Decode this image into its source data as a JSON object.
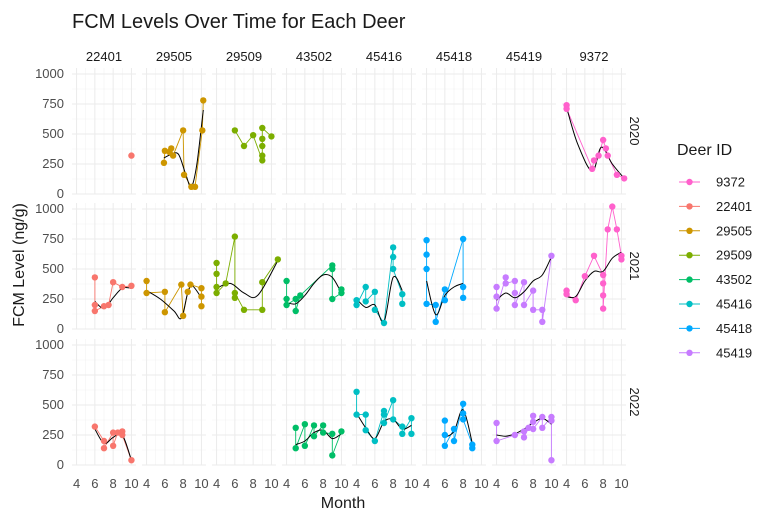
{
  "chart_data": {
    "type": "scatter",
    "title": "FCM Levels Over Time for Each Deer",
    "xlabel": "Month",
    "ylabel": "FCM Level (ng/g)",
    "xlim": [
      3.5,
      10.5
    ],
    "ylim": [
      0,
      1050
    ],
    "x_ticks": [
      4,
      6,
      8,
      10
    ],
    "y_ticks": [
      0,
      250,
      500,
      750,
      1000
    ],
    "grid": true,
    "legend_title": "Deer ID",
    "legend_position": "right",
    "facet_columns": [
      "22401",
      "29505",
      "29509",
      "43502",
      "45416",
      "45418",
      "45419",
      "9372"
    ],
    "facet_rows": [
      "2020",
      "2021",
      "2022"
    ],
    "series_colors": {
      "22401": "#F8766D",
      "29505": "#CD9600",
      "29509": "#7CAE00",
      "43502": "#00BE67",
      "45416": "#00BFC4",
      "45418": "#00A9FF",
      "45419": "#C77CFF",
      "9372": "#FF61CC"
    },
    "trend_color": "#000000",
    "panels": [
      {
        "id": "22401",
        "year": "2020",
        "points": [
          [
            10.0,
            320
          ]
        ],
        "trend": []
      },
      {
        "id": "29505",
        "year": "2020",
        "points": [
          [
            5.9,
            260
          ],
          [
            6.0,
            360
          ],
          [
            6.5,
            350
          ],
          [
            6.7,
            380
          ],
          [
            6.9,
            320
          ],
          [
            8.0,
            530
          ],
          [
            8.1,
            160
          ],
          [
            8.9,
            60
          ],
          [
            9.3,
            60
          ],
          [
            10.1,
            530
          ],
          [
            10.2,
            780
          ]
        ],
        "trend": [
          [
            5.9,
            300
          ],
          [
            6.7,
            330
          ],
          [
            7.5,
            330
          ],
          [
            8.3,
            160
          ],
          [
            8.9,
            60
          ],
          [
            9.5,
            250
          ],
          [
            10.2,
            700
          ]
        ]
      },
      {
        "id": "29509",
        "year": "2020",
        "points": [
          [
            6.0,
            530
          ],
          [
            7.0,
            400
          ],
          [
            8.0,
            490
          ],
          [
            9.0,
            280
          ],
          [
            9.0,
            320
          ],
          [
            9.0,
            400
          ],
          [
            9.0,
            460
          ],
          [
            9.0,
            550
          ],
          [
            10.0,
            480
          ]
        ],
        "trend": []
      },
      {
        "id": "9372",
        "year": "2020",
        "points": [
          [
            4.0,
            740
          ],
          [
            4.0,
            710
          ],
          [
            6.8,
            210
          ],
          [
            7.0,
            280
          ],
          [
            7.5,
            320
          ],
          [
            8.0,
            450
          ],
          [
            8.3,
            380
          ],
          [
            8.5,
            320
          ],
          [
            9.5,
            160
          ],
          [
            10.3,
            130
          ]
        ],
        "trend": [
          [
            4.0,
            720
          ],
          [
            5.2,
            420
          ],
          [
            6.8,
            190
          ],
          [
            7.8,
            390
          ],
          [
            9.0,
            250
          ],
          [
            10.3,
            130
          ]
        ]
      },
      {
        "id": "22401",
        "year": "2021",
        "points": [
          [
            6.0,
            430
          ],
          [
            6.0,
            200
          ],
          [
            6.0,
            150
          ],
          [
            7.0,
            190
          ],
          [
            7.5,
            200
          ],
          [
            8.0,
            390
          ],
          [
            9.0,
            350
          ],
          [
            10.0,
            360
          ]
        ],
        "trend": [
          [
            6.0,
            230
          ],
          [
            7.0,
            170
          ],
          [
            8.0,
            260
          ],
          [
            9.0,
            340
          ],
          [
            10.0,
            340
          ]
        ]
      },
      {
        "id": "29505",
        "year": "2021",
        "points": [
          [
            4.0,
            400
          ],
          [
            4.0,
            300
          ],
          [
            6.0,
            310
          ],
          [
            6.0,
            140
          ],
          [
            7.8,
            370
          ],
          [
            8.0,
            110
          ],
          [
            8.5,
            310
          ],
          [
            8.8,
            370
          ],
          [
            10.0,
            340
          ],
          [
            10.0,
            270
          ],
          [
            10.0,
            190
          ]
        ],
        "trend": [
          [
            4.0,
            320
          ],
          [
            5.5,
            250
          ],
          [
            7.0,
            150
          ],
          [
            7.8,
            90
          ],
          [
            8.5,
            300
          ],
          [
            9.0,
            360
          ],
          [
            10.0,
            260
          ]
        ]
      },
      {
        "id": "29509",
        "year": "2021",
        "points": [
          [
            4.0,
            550
          ],
          [
            4.0,
            460
          ],
          [
            4.0,
            350
          ],
          [
            4.0,
            300
          ],
          [
            5.0,
            380
          ],
          [
            6.0,
            770
          ],
          [
            6.0,
            260
          ],
          [
            6.0,
            300
          ],
          [
            7.0,
            160
          ],
          [
            9.0,
            160
          ],
          [
            9.0,
            390
          ],
          [
            10.7,
            580
          ]
        ],
        "trend": [
          [
            4.0,
            340
          ],
          [
            5.5,
            380
          ],
          [
            7.0,
            300
          ],
          [
            8.5,
            280
          ],
          [
            10.7,
            570
          ]
        ]
      },
      {
        "id": "43502",
        "year": "2021",
        "points": [
          [
            4.0,
            400
          ],
          [
            4.0,
            250
          ],
          [
            4.0,
            200
          ],
          [
            5.0,
            250
          ],
          [
            5.0,
            150
          ],
          [
            5.5,
            280
          ],
          [
            9.0,
            530
          ],
          [
            9.0,
            500
          ],
          [
            9.0,
            250
          ],
          [
            10.0,
            300
          ],
          [
            10.0,
            330
          ]
        ],
        "trend": [
          [
            4.0,
            220
          ],
          [
            5.0,
            210
          ],
          [
            6.0,
            280
          ],
          [
            7.0,
            380
          ],
          [
            8.0,
            450
          ],
          [
            9.0,
            430
          ],
          [
            10.0,
            300
          ]
        ]
      },
      {
        "id": "45416",
        "year": "2021",
        "points": [
          [
            4.0,
            240
          ],
          [
            4.0,
            200
          ],
          [
            5.0,
            350
          ],
          [
            5.0,
            230
          ],
          [
            6.0,
            310
          ],
          [
            6.0,
            160
          ],
          [
            7.0,
            50
          ],
          [
            8.0,
            680
          ],
          [
            8.0,
            600
          ],
          [
            8.0,
            500
          ],
          [
            9.0,
            290
          ],
          [
            9.0,
            210
          ]
        ],
        "trend": [
          [
            4.0,
            250
          ],
          [
            5.0,
            180
          ],
          [
            6.0,
            200
          ],
          [
            7.0,
            60
          ],
          [
            8.0,
            430
          ],
          [
            9.0,
            320
          ]
        ]
      },
      {
        "id": "45418",
        "year": "2021",
        "points": [
          [
            4.0,
            740
          ],
          [
            4.0,
            620
          ],
          [
            4.0,
            500
          ],
          [
            4.0,
            210
          ],
          [
            5.0,
            200
          ],
          [
            5.0,
            60
          ],
          [
            6.0,
            330
          ],
          [
            6.0,
            240
          ],
          [
            8.0,
            750
          ],
          [
            8.0,
            350
          ],
          [
            8.0,
            260
          ]
        ],
        "trend": [
          [
            4.0,
            400
          ],
          [
            5.0,
            120
          ],
          [
            6.0,
            280
          ],
          [
            7.0,
            350
          ],
          [
            8.0,
            380
          ]
        ]
      },
      {
        "id": "45419",
        "year": "2021",
        "points": [
          [
            4.0,
            350
          ],
          [
            4.0,
            270
          ],
          [
            4.0,
            170
          ],
          [
            5.0,
            430
          ],
          [
            5.0,
            380
          ],
          [
            6.0,
            400
          ],
          [
            6.0,
            300
          ],
          [
            6.0,
            200
          ],
          [
            7.0,
            390
          ],
          [
            7.0,
            200
          ],
          [
            8.0,
            320
          ],
          [
            8.0,
            160
          ],
          [
            9.0,
            160
          ],
          [
            9.0,
            60
          ],
          [
            10.0,
            610
          ]
        ],
        "trend": [
          [
            4.0,
            240
          ],
          [
            5.0,
            300
          ],
          [
            6.0,
            260
          ],
          [
            7.0,
            310
          ],
          [
            8.0,
            400
          ],
          [
            9.0,
            450
          ],
          [
            10.0,
            600
          ]
        ]
      },
      {
        "id": "9372",
        "year": "2021",
        "points": [
          [
            4.0,
            320
          ],
          [
            4.0,
            290
          ],
          [
            5.0,
            240
          ],
          [
            6.0,
            440
          ],
          [
            7.0,
            610
          ],
          [
            8.0,
            450
          ],
          [
            8.0,
            380
          ],
          [
            8.0,
            280
          ],
          [
            8.0,
            170
          ],
          [
            8.5,
            830
          ],
          [
            9.0,
            1020
          ],
          [
            9.5,
            830
          ],
          [
            10.0,
            610
          ],
          [
            10.0,
            580
          ]
        ],
        "trend": [
          [
            4.0,
            270
          ],
          [
            5.0,
            270
          ],
          [
            6.0,
            400
          ],
          [
            7.0,
            480
          ],
          [
            8.0,
            480
          ],
          [
            9.0,
            590
          ],
          [
            10.0,
            640
          ]
        ]
      },
      {
        "id": "22401",
        "year": "2022",
        "points": [
          [
            6.0,
            320
          ],
          [
            7.0,
            200
          ],
          [
            7.0,
            140
          ],
          [
            8.0,
            270
          ],
          [
            8.0,
            160
          ],
          [
            8.5,
            270
          ],
          [
            9.0,
            280
          ],
          [
            9.0,
            250
          ],
          [
            10.0,
            40
          ]
        ],
        "trend": [
          [
            6.0,
            300
          ],
          [
            7.0,
            180
          ],
          [
            8.0,
            230
          ],
          [
            9.0,
            250
          ],
          [
            10.0,
            40
          ]
        ]
      },
      {
        "id": "43502",
        "year": "2022",
        "points": [
          [
            5.0,
            310
          ],
          [
            5.0,
            140
          ],
          [
            6.0,
            340
          ],
          [
            6.0,
            160
          ],
          [
            7.0,
            330
          ],
          [
            7.0,
            240
          ],
          [
            8.0,
            330
          ],
          [
            8.0,
            270
          ],
          [
            9.0,
            260
          ],
          [
            9.0,
            80
          ],
          [
            10.0,
            280
          ]
        ],
        "trend": [
          [
            5.0,
            170
          ],
          [
            6.0,
            200
          ],
          [
            7.0,
            270
          ],
          [
            8.0,
            290
          ],
          [
            9.0,
            220
          ],
          [
            10.0,
            260
          ]
        ]
      },
      {
        "id": "45416",
        "year": "2022",
        "points": [
          [
            4.0,
            610
          ],
          [
            4.0,
            420
          ],
          [
            5.0,
            420
          ],
          [
            5.0,
            290
          ],
          [
            6.0,
            200
          ],
          [
            7.0,
            450
          ],
          [
            7.0,
            420
          ],
          [
            7.0,
            350
          ],
          [
            8.0,
            540
          ],
          [
            8.0,
            380
          ],
          [
            9.0,
            320
          ],
          [
            9.0,
            260
          ],
          [
            10.0,
            390
          ],
          [
            10.0,
            260
          ]
        ],
        "trend": [
          [
            4.0,
            430
          ],
          [
            5.0,
            310
          ],
          [
            6.0,
            220
          ],
          [
            7.0,
            360
          ],
          [
            8.0,
            380
          ],
          [
            9.0,
            300
          ],
          [
            10.0,
            330
          ]
        ]
      },
      {
        "id": "45418",
        "year": "2022",
        "points": [
          [
            6.0,
            370
          ],
          [
            6.0,
            250
          ],
          [
            6.0,
            160
          ],
          [
            7.0,
            300
          ],
          [
            7.0,
            200
          ],
          [
            8.0,
            510
          ],
          [
            8.0,
            430
          ],
          [
            8.0,
            380
          ],
          [
            9.0,
            170
          ],
          [
            9.0,
            140
          ]
        ],
        "trend": [
          [
            6.0,
            230
          ],
          [
            7.0,
            280
          ],
          [
            8.0,
            460
          ],
          [
            9.0,
            180
          ]
        ]
      },
      {
        "id": "45419",
        "year": "2022",
        "points": [
          [
            4.0,
            350
          ],
          [
            4.0,
            200
          ],
          [
            6.0,
            250
          ],
          [
            7.0,
            280
          ],
          [
            7.0,
            230
          ],
          [
            7.5,
            310
          ],
          [
            8.0,
            410
          ],
          [
            8.0,
            360
          ],
          [
            8.0,
            300
          ],
          [
            9.0,
            400
          ],
          [
            9.0,
            310
          ],
          [
            10.0,
            400
          ],
          [
            10.0,
            370
          ],
          [
            10.0,
            40
          ]
        ],
        "trend": [
          [
            4.0,
            250
          ],
          [
            5.0,
            240
          ],
          [
            6.0,
            260
          ],
          [
            7.0,
            300
          ],
          [
            8.0,
            350
          ],
          [
            9.0,
            390
          ],
          [
            10.0,
            340
          ]
        ]
      }
    ]
  }
}
